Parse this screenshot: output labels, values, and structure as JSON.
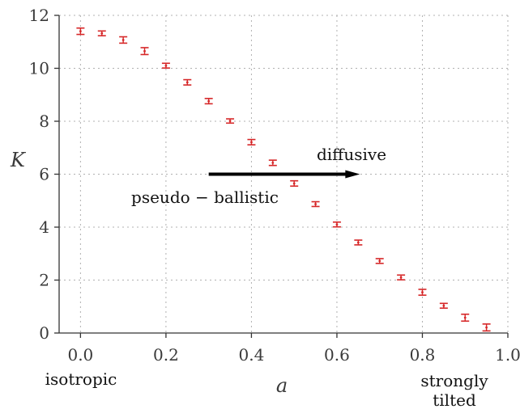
{
  "chart_data": {
    "type": "scatter",
    "title": "",
    "xlabel": "a",
    "ylabel": "K",
    "xlim": [
      -0.05,
      1.0
    ],
    "ylim": [
      0,
      12
    ],
    "grid": true,
    "x_ticks": [
      "0.0",
      "0.2",
      "0.4",
      "0.6",
      "0.8",
      "1.0"
    ],
    "y_ticks": [
      "0",
      "2",
      "4",
      "6",
      "8",
      "10",
      "12"
    ],
    "colors": {
      "points": "#d62728",
      "arrow": "#000000"
    },
    "series": [
      {
        "x": [
          0.0,
          0.05,
          0.1,
          0.15,
          0.2,
          0.25,
          0.3,
          0.35,
          0.4,
          0.45,
          0.5,
          0.55,
          0.6,
          0.65,
          0.7,
          0.75,
          0.8,
          0.85,
          0.9,
          0.95
        ],
        "y": [
          11.4,
          11.32,
          11.07,
          10.65,
          10.1,
          9.47,
          8.76,
          8.01,
          7.21,
          6.43,
          5.65,
          4.87,
          4.1,
          3.42,
          2.72,
          2.1,
          1.54,
          1.03,
          0.58,
          0.21
        ],
        "yerr": [
          0.12,
          0.09,
          0.12,
          0.13,
          0.09,
          0.1,
          0.1,
          0.08,
          0.1,
          0.1,
          0.1,
          0.09,
          0.09,
          0.09,
          0.09,
          0.09,
          0.11,
          0.09,
          0.13,
          0.13
        ]
      }
    ],
    "annotations": {
      "arrow": {
        "from": [
          0.3,
          6.0
        ],
        "to": [
          0.65,
          6.0
        ]
      },
      "diffusive": "diffusive",
      "pseudo_ballistic": "pseudo − ballistic",
      "isotropic": "isotropic",
      "strongly": "strongly",
      "tilted": "tilted"
    }
  }
}
